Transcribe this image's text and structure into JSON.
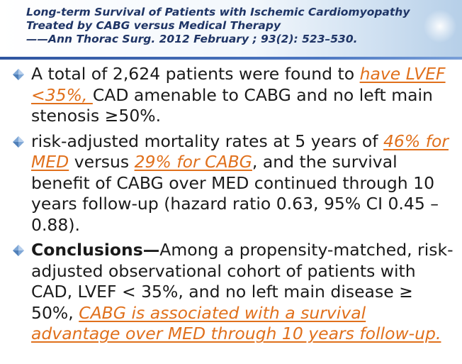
{
  "header": {
    "line1": "Long-term Survival of Patients with Ischemic Cardiomyopathy",
    "line2": "Treated by CABG versus Medical Therapy",
    "line3": "——Ann Thorac Surg. 2012 February ; 93(2): 523–530."
  },
  "bullets": [
    {
      "icon": "diamond-bullet-icon",
      "part1": "A total of 2,624 patients were found to ",
      "hl1": "have LVEF <35%, ",
      "part2": "CAD amenable to CABG and no left main stenosis ≥50%."
    },
    {
      "icon": "diamond-bullet-icon",
      "part1": "risk-adjusted mortality rates at 5 years of ",
      "hl1": "46% for MED",
      "part2": " versus ",
      "hl2": "29% for CABG",
      "part3": ", and the survival benefit of CABG over MED continued through 10 years follow-up (hazard ratio 0.63, 95% CI 0.45 – 0.88)."
    },
    {
      "icon": "diamond-bullet-icon",
      "bold": "Conclusions—",
      "part1": "Among a propensity-matched, risk-adjusted observational cohort of patients with CAD, LVEF < 35%, and no left main disease ≥ 50%, ",
      "hl1": "CABG is associated with a survival advantage over MED through 10 years follow-up."
    }
  ],
  "colors": {
    "header_text": "#1f3566",
    "highlight": "#e0701c",
    "body_text": "#1a1a1a",
    "bullet_icon": "#7fa7d6"
  }
}
